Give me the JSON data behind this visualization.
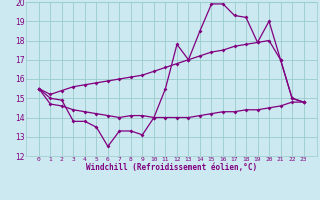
{
  "title": "",
  "xlabel": "Windchill (Refroidissement éolien,°C)",
  "bg_color": "#cce8f0",
  "line_color": "#800080",
  "grid_color": "#99cccc",
  "hours": [
    0,
    1,
    2,
    3,
    4,
    5,
    6,
    7,
    8,
    9,
    10,
    11,
    12,
    13,
    14,
    15,
    16,
    17,
    18,
    19,
    20,
    21,
    22,
    23
  ],
  "line1": [
    15.5,
    15.0,
    14.9,
    13.8,
    13.8,
    13.5,
    12.5,
    13.3,
    13.3,
    13.1,
    14.0,
    15.5,
    17.8,
    17.0,
    18.5,
    19.9,
    19.9,
    19.3,
    19.2,
    17.9,
    19.0,
    17.0,
    15.0,
    14.8
  ],
  "line2": [
    15.5,
    15.2,
    15.4,
    15.6,
    15.7,
    15.8,
    15.9,
    16.0,
    16.1,
    16.2,
    16.4,
    16.6,
    16.8,
    17.0,
    17.2,
    17.4,
    17.5,
    17.7,
    17.8,
    17.9,
    18.0,
    17.0,
    15.0,
    14.8
  ],
  "line3": [
    15.5,
    14.7,
    14.6,
    14.4,
    14.3,
    14.2,
    14.1,
    14.0,
    14.1,
    14.1,
    14.0,
    14.0,
    14.0,
    14.0,
    14.1,
    14.2,
    14.3,
    14.3,
    14.4,
    14.4,
    14.5,
    14.6,
    14.8,
    14.8
  ],
  "ylim": [
    12,
    20
  ],
  "yticks": [
    12,
    13,
    14,
    15,
    16,
    17,
    18,
    19,
    20
  ],
  "xticks": [
    0,
    1,
    2,
    3,
    4,
    5,
    6,
    7,
    8,
    9,
    10,
    11,
    12,
    13,
    14,
    15,
    16,
    17,
    18,
    19,
    20,
    21,
    22,
    23
  ],
  "markersize": 2.0,
  "linewidth": 0.9
}
